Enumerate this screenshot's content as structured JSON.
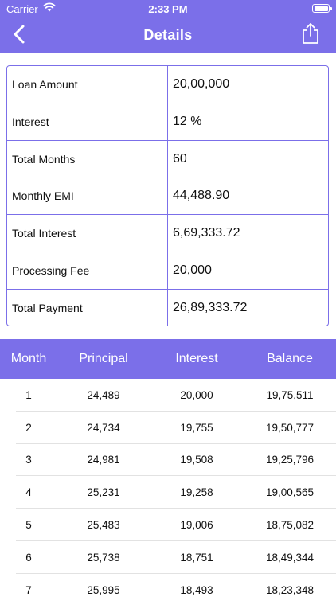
{
  "status_bar": {
    "carrier": "Carrier",
    "time": "2:33 PM"
  },
  "nav": {
    "title": "Details",
    "back_icon": "chevron-left-icon",
    "share_icon": "share-icon"
  },
  "colors": {
    "accent": "#7B6FE9",
    "divider": "#e2e2e2"
  },
  "details": [
    {
      "label": "Loan Amount",
      "value": "20,00,000"
    },
    {
      "label": "Interest",
      "value": "12 %"
    },
    {
      "label": "Total Months",
      "value": "60"
    },
    {
      "label": "Monthly EMI",
      "value": "44,488.90"
    },
    {
      "label": "Total Interest",
      "value": "6,69,333.72"
    },
    {
      "label": "Processing Fee",
      "value": "20,000"
    },
    {
      "label": "Total Payment",
      "value": "26,89,333.72"
    }
  ],
  "schedule": {
    "headers": [
      "Month",
      "Principal",
      "Interest",
      "Balance"
    ],
    "rows": [
      [
        "1",
        "24,489",
        "20,000",
        "19,75,511"
      ],
      [
        "2",
        "24,734",
        "19,755",
        "19,50,777"
      ],
      [
        "3",
        "24,981",
        "19,508",
        "19,25,796"
      ],
      [
        "4",
        "25,231",
        "19,258",
        "19,00,565"
      ],
      [
        "5",
        "25,483",
        "19,006",
        "18,75,082"
      ],
      [
        "6",
        "25,738",
        "18,751",
        "18,49,344"
      ],
      [
        "7",
        "25,995",
        "18,493",
        "18,23,348"
      ]
    ]
  }
}
